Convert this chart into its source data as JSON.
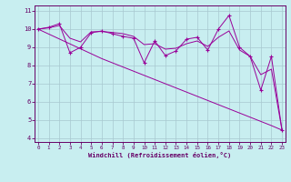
{
  "xlabel": "Windchill (Refroidissement éolien,°C)",
  "bg_color": "#c8eef0",
  "line_color": "#990099",
  "xlim": [
    0,
    23
  ],
  "ylim": [
    3.8,
    11.3
  ],
  "yticks": [
    4,
    5,
    6,
    7,
    8,
    9,
    10,
    11
  ],
  "xticks": [
    0,
    1,
    2,
    3,
    4,
    5,
    6,
    7,
    8,
    9,
    10,
    11,
    12,
    13,
    14,
    15,
    16,
    17,
    18,
    19,
    20,
    21,
    22,
    23
  ],
  "jagged": [
    10.0,
    10.1,
    10.3,
    8.7,
    9.0,
    9.8,
    9.9,
    9.75,
    9.6,
    9.5,
    8.15,
    9.35,
    8.55,
    8.8,
    9.45,
    9.55,
    8.85,
    10.0,
    10.75,
    9.0,
    8.5,
    6.65,
    8.5,
    4.45
  ],
  "smooth": [
    10.0,
    10.07,
    10.2,
    9.5,
    9.3,
    9.85,
    9.87,
    9.82,
    9.75,
    9.6,
    9.15,
    9.2,
    8.9,
    8.95,
    9.2,
    9.35,
    9.05,
    9.55,
    9.9,
    8.85,
    8.5,
    7.5,
    7.8,
    4.45
  ],
  "trend": [
    10.0,
    9.73,
    9.46,
    9.19,
    8.92,
    8.65,
    8.38,
    8.15,
    7.92,
    7.69,
    7.46,
    7.23,
    7.0,
    6.77,
    6.54,
    6.31,
    6.08,
    5.85,
    5.62,
    5.39,
    5.16,
    4.93,
    4.7,
    4.45
  ]
}
